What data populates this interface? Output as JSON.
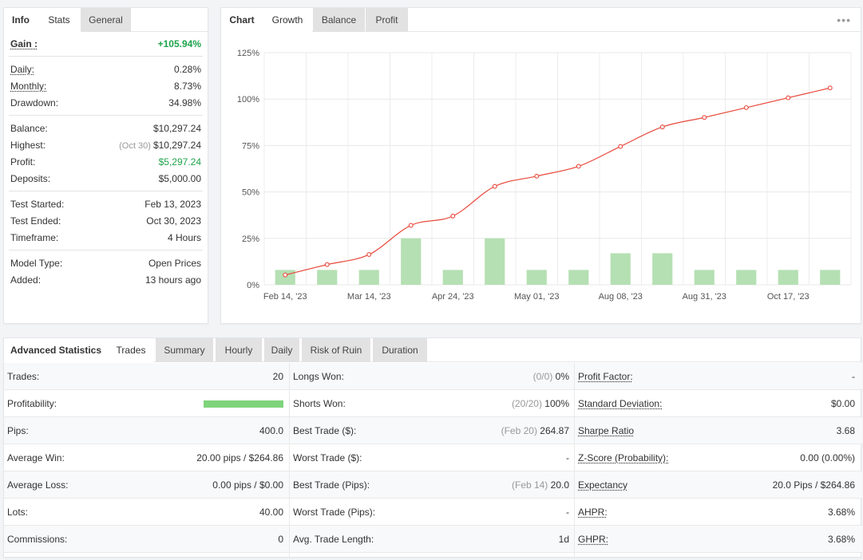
{
  "info_panel": {
    "tabs": [
      "Info",
      "Stats",
      "General"
    ],
    "groups": [
      [
        {
          "label": "Gain :",
          "value": "+105.94%",
          "green": true,
          "bold": true,
          "underline": true
        }
      ],
      [
        {
          "label": "Daily:",
          "value": "0.28%",
          "underline": true
        },
        {
          "label": "Monthly:",
          "value": "8.73%",
          "underline": true
        },
        {
          "label": "Drawdown:",
          "value": "34.98%"
        }
      ],
      [
        {
          "label": "Balance:",
          "value": "$10,297.24"
        },
        {
          "label": "Highest:",
          "note": "(Oct 30)",
          "value": "$10,297.24"
        },
        {
          "label": "Profit:",
          "value": "$5,297.24",
          "green": true
        },
        {
          "label": "Deposits:",
          "value": "$5,000.00"
        }
      ],
      [
        {
          "label": "Test Started:",
          "value": "Feb 13, 2023"
        },
        {
          "label": "Test Ended:",
          "value": "Oct 30, 2023"
        },
        {
          "label": "Timeframe:",
          "value": "4 Hours"
        }
      ],
      [
        {
          "label": "Model Type:",
          "value": "Open Prices"
        },
        {
          "label": "Added:",
          "value": "13 hours ago"
        }
      ]
    ]
  },
  "chart_panel": {
    "tabs": [
      "Chart",
      "Growth",
      "Balance",
      "Profit"
    ],
    "menu_icon": "more-dots-icon"
  },
  "chart_data": {
    "type": "line",
    "y_ticks": [
      "125%",
      "100%",
      "75%",
      "50%",
      "25%",
      "0%"
    ],
    "ylim": [
      0,
      125
    ],
    "x_tick_labels": [
      "Feb 14, '23",
      "Mar 14, '23",
      "Apr 24, '23",
      "May 01, '23",
      "Aug 08, '23",
      "Aug 31, '23",
      "Oct 17, '23"
    ],
    "line_color": "#e8483b",
    "bar_color": "#b5e0b3",
    "growth_values": [
      5.3,
      10.9,
      16.3,
      32.0,
      37.0,
      53.0,
      58.5,
      63.8,
      74.5,
      85.0,
      90.1,
      95.4,
      100.7,
      106.0
    ],
    "bar_values": [
      8,
      8,
      8,
      25,
      8,
      25,
      8,
      8,
      17,
      17,
      8,
      8,
      8,
      8
    ],
    "grid": true
  },
  "advanced": {
    "tabs": [
      "Advanced Statistics",
      "Trades",
      "Summary",
      "Hourly",
      "Daily",
      "Risk of Ruin",
      "Duration"
    ],
    "col1": [
      {
        "label": "Trades:",
        "value": "20"
      },
      {
        "label": "Profitability:",
        "bar": 1.0
      },
      {
        "label": "Pips:",
        "value": "400.0"
      },
      {
        "label": "Average Win:",
        "value": "20.00 pips / $264.86"
      },
      {
        "label": "Average Loss:",
        "value": "0.00 pips / $0.00"
      },
      {
        "label": "Lots:",
        "value": "40.00"
      },
      {
        "label": "Commissions:",
        "value": "0"
      }
    ],
    "col2": [
      {
        "label": "Longs Won:",
        "note": "(0/0)",
        "value": "0%"
      },
      {
        "label": "Shorts Won:",
        "note": "(20/20)",
        "value": "100%"
      },
      {
        "label": "Best Trade ($):",
        "note": "(Feb 20)",
        "value": "264.87"
      },
      {
        "label": "Worst Trade ($):",
        "value": "-"
      },
      {
        "label": "Best Trade (Pips):",
        "note": "(Feb 14)",
        "value": "20.0"
      },
      {
        "label": "Worst Trade (Pips):",
        "value": "-"
      },
      {
        "label": "Avg. Trade Length:",
        "value": "1d"
      }
    ],
    "col3": [
      {
        "label": "Profit Factor:",
        "value": "-",
        "underline": true
      },
      {
        "label": "Standard Deviation:",
        "value": "$0.00",
        "underline": true
      },
      {
        "label": "Sharpe Ratio",
        "value": "3.68",
        "underline": true
      },
      {
        "label": "Z-Score (Probability):",
        "value": "0.00 (0.00%)",
        "underline": true
      },
      {
        "label": "Expectancy",
        "value": "20.0 Pips / $264.86",
        "underline": true
      },
      {
        "label": "AHPR:",
        "value": "3.68%",
        "underline": true
      },
      {
        "label": "GHPR:",
        "value": "3.68%",
        "underline": true
      }
    ]
  }
}
